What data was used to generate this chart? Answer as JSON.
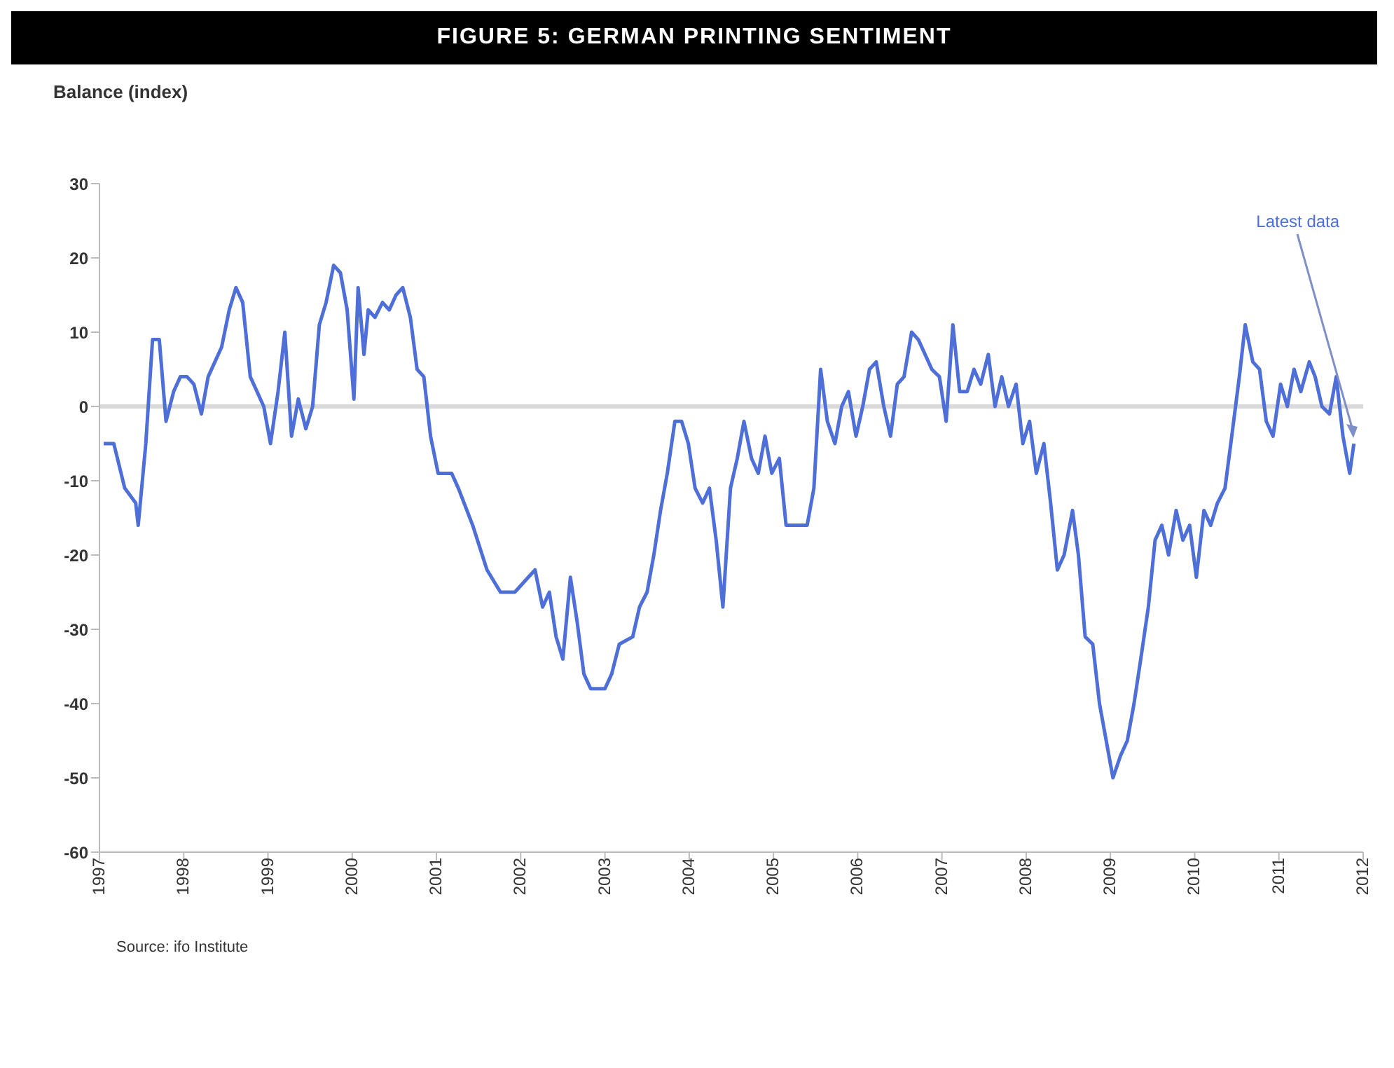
{
  "chart_data": {
    "type": "line",
    "title": "FIGURE 5: GERMAN PRINTING SENTIMENT",
    "ylabel": "Balance (index)",
    "annotations": [
      {
        "text": "Latest data",
        "x": 2011.89,
        "y": -5
      },
      "Source: ifo Institute"
    ],
    "x": [
      1997.05,
      1997.17,
      1997.3,
      1997.43,
      1997.46,
      1997.55,
      1997.63,
      1997.71,
      1997.79,
      1997.88,
      1997.96,
      1998.04,
      1998.12,
      1998.21,
      1998.29,
      1998.37,
      1998.45,
      1998.54,
      1998.62,
      1998.7,
      1998.79,
      1998.87,
      1998.95,
      1999.03,
      1999.12,
      1999.2,
      1999.28,
      1999.36,
      1999.45,
      1999.53,
      1999.61,
      1999.69,
      1999.78,
      1999.86,
      1999.94,
      2000.02,
      2000.07,
      2000.14,
      2000.19,
      2000.27,
      2000.36,
      2000.44,
      2000.52,
      2000.6,
      2000.69,
      2000.77,
      2000.85,
      2000.93,
      2001.02,
      2001.18,
      2001.26,
      2001.43,
      2001.6,
      2001.76,
      2001.93,
      2002.09,
      2002.17,
      2002.26,
      2002.34,
      2002.42,
      2002.5,
      2002.59,
      2002.67,
      2002.75,
      2002.83,
      2003.0,
      2003.08,
      2003.17,
      2003.33,
      2003.41,
      2003.5,
      2003.58,
      2003.66,
      2003.74,
      2003.83,
      2003.91,
      2003.99,
      2004.07,
      2004.16,
      2004.24,
      2004.32,
      2004.4,
      2004.49,
      2004.57,
      2004.65,
      2004.74,
      2004.82,
      2004.9,
      2004.98,
      2005.07,
      2005.15,
      2005.23,
      2005.4,
      2005.48,
      2005.56,
      2005.64,
      2005.73,
      2005.81,
      2005.89,
      2005.98,
      2006.06,
      2006.14,
      2006.22,
      2006.31,
      2006.39,
      2006.47,
      2006.55,
      2006.64,
      2006.72,
      2006.8,
      2006.88,
      2006.97,
      2007.05,
      2007.13,
      2007.21,
      2007.3,
      2007.38,
      2007.46,
      2007.55,
      2007.63,
      2007.71,
      2007.79,
      2007.88,
      2007.96,
      2008.04,
      2008.12,
      2008.21,
      2008.29,
      2008.37,
      2008.45,
      2008.55,
      2008.62,
      2008.7,
      2008.79,
      2008.87,
      2008.95,
      2009.03,
      2009.12,
      2009.2,
      2009.28,
      2009.36,
      2009.45,
      2009.53,
      2009.61,
      2009.69,
      2009.78,
      2009.86,
      2009.94,
      2010.02,
      2010.11,
      2010.19,
      2010.27,
      2010.36,
      2010.44,
      2010.53,
      2010.6,
      2010.69,
      2010.77,
      2010.85,
      2010.93,
      2011.02,
      2011.1,
      2011.18,
      2011.26,
      2011.36,
      2011.43,
      2011.51,
      2011.6,
      2011.68,
      2011.76,
      2011.84,
      2011.89
    ],
    "series": [
      {
        "color": "#4f6fd8",
        "values": [
          -5,
          -5,
          -11,
          -13,
          -16,
          -5,
          9,
          9,
          -2,
          2,
          4,
          4,
          3,
          -1,
          4,
          6,
          8,
          13,
          16,
          14,
          4,
          2,
          0,
          -5,
          2,
          10,
          -4,
          1,
          -3,
          0,
          11,
          14,
          19,
          18,
          13,
          1,
          16,
          7,
          13,
          12,
          14,
          13,
          15,
          16,
          12,
          5,
          4,
          -4,
          -9,
          -9,
          -11,
          -16,
          -22,
          -25,
          -25,
          -23,
          -22,
          -27,
          -25,
          -31,
          -34,
          -23,
          -29,
          -36,
          -38,
          -38,
          -36,
          -32,
          -31,
          -27,
          -25,
          -20,
          -14,
          -9,
          -2,
          -2,
          -5,
          -11,
          -13,
          -11,
          -18,
          -27,
          -11,
          -7,
          -2,
          -7,
          -9,
          -4,
          -9,
          -7,
          -16,
          -16,
          -16,
          -11,
          5,
          -2,
          -5,
          0,
          2,
          -4,
          0,
          5,
          6,
          0,
          -4,
          3,
          4,
          10,
          9,
          7,
          5,
          4,
          -2,
          11,
          2,
          2,
          5,
          3,
          7,
          0,
          4,
          0,
          3,
          -5,
          -2,
          -9,
          -5,
          -13,
          -22,
          -20,
          -14,
          -20,
          -31,
          -32,
          -40,
          -45,
          -50,
          -47,
          -45,
          -40,
          -34,
          -27,
          -18,
          -16,
          -20,
          -14,
          -18,
          -16,
          -23,
          -14,
          -16,
          -13,
          -11,
          -4,
          4,
          11,
          6,
          5,
          -2,
          -4,
          3,
          0,
          5,
          2,
          6,
          4,
          0,
          -1,
          4,
          -4,
          -9,
          -5
        ]
      }
    ],
    "xlim": [
      1997,
      2012
    ],
    "xticks": [
      1997,
      1998,
      1999,
      2000,
      2001,
      2002,
      2003,
      2004,
      2005,
      2006,
      2007,
      2008,
      2009,
      2010,
      2011,
      2012
    ],
    "ylim": [
      -60,
      30
    ],
    "yticks": [
      30,
      20,
      10,
      0,
      -10,
      -20,
      -30,
      -40,
      -50,
      -60
    ],
    "ref_lines": [
      {
        "axis": "y",
        "value": 0,
        "color": "#d9d9d9"
      }
    ],
    "grid": false,
    "legend": false,
    "marker": "none",
    "line_style": "solid"
  }
}
